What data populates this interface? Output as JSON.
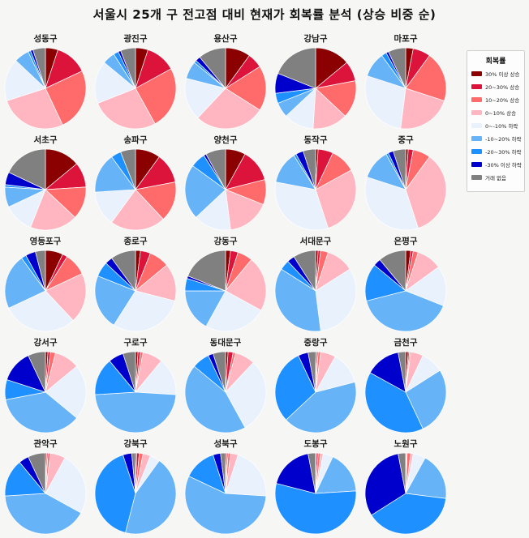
{
  "title": "서울시 25개 구 전고점 대비 현재가 회복률 분석 (상승 비중 순)",
  "legend": {
    "title": "회복률",
    "items": [
      {
        "label": "30% 이상 상승",
        "color": "#8B0000"
      },
      {
        "label": "20~30% 상승",
        "color": "#DC143C"
      },
      {
        "label": "10~20% 상승",
        "color": "#FF6B6B"
      },
      {
        "label": "0~10% 상승",
        "color": "#FFB6C1"
      },
      {
        "label": "0~-10% 하락",
        "color": "#E8F1FC"
      },
      {
        "label": "-10~20% 하락",
        "color": "#66B3F7"
      },
      {
        "label": "-20~30% 하락",
        "color": "#1E90FF"
      },
      {
        "label": "-30% 이상 하락",
        "color": "#0000CD"
      },
      {
        "label": "거래 없음",
        "color": "#808080"
      }
    ]
  },
  "chart_data": {
    "type": "pie",
    "grid": {
      "cols": 5,
      "rows": 5,
      "sorted_by": "상승 비중 순"
    },
    "categories": [
      "30% 이상 상승",
      "20~30% 상승",
      "10~20% 상승",
      "0~10% 상승",
      "0~-10% 하락",
      "-10~20% 하락",
      "-20~30% 하락",
      "-30% 이상 하락",
      "거래 없음"
    ],
    "colors": [
      "#8B0000",
      "#DC143C",
      "#FF6B6B",
      "#FFB6C1",
      "#E8F1FC",
      "#66B3F7",
      "#1E90FF",
      "#0000CD",
      "#808080"
    ],
    "unit": "percent share of transactions",
    "pies": [
      {
        "district": "성동구",
        "values": [
          5,
          13,
          25,
          27,
          17,
          6,
          1,
          1,
          5
        ]
      },
      {
        "district": "광진구",
        "values": [
          5,
          12,
          25,
          27,
          17,
          5,
          2,
          1,
          6
        ]
      },
      {
        "district": "용산구",
        "values": [
          10,
          6,
          18,
          28,
          17,
          7,
          1,
          2,
          11
        ]
      },
      {
        "district": "강남구",
        "values": [
          14,
          8,
          15,
          14,
          12,
          6,
          4,
          8,
          19
        ]
      },
      {
        "district": "마포구",
        "values": [
          3,
          7,
          20,
          22,
          28,
          10,
          2,
          1,
          7
        ]
      },
      {
        "district": "서초구",
        "values": [
          14,
          10,
          13,
          19,
          12,
          8,
          1,
          5,
          18
        ]
      },
      {
        "district": "송파구",
        "values": [
          10,
          12,
          16,
          22,
          14,
          16,
          4,
          0,
          6
        ]
      },
      {
        "district": "양천구",
        "values": [
          8,
          13,
          10,
          17,
          15,
          22,
          6,
          1,
          8
        ]
      },
      {
        "district": "동작구",
        "values": [
          1,
          6,
          10,
          28,
          33,
          13,
          1,
          3,
          5
        ]
      },
      {
        "district": "중구",
        "values": [
          1,
          2,
          7,
          35,
          35,
          12,
          1,
          2,
          5
        ]
      },
      {
        "district": "영등포구",
        "values": [
          7,
          2,
          9,
          20,
          30,
          22,
          2,
          4,
          4
        ]
      },
      {
        "district": "종로구",
        "values": [
          2,
          4,
          8,
          15,
          30,
          22,
          6,
          3,
          10
        ]
      },
      {
        "district": "강동구",
        "values": [
          2,
          3,
          6,
          22,
          25,
          17,
          5,
          1,
          19
        ]
      },
      {
        "district": "서대문구",
        "values": [
          1,
          1,
          3,
          11,
          32,
          36,
          4,
          3,
          9
        ]
      },
      {
        "district": "은평구",
        "values": [
          2,
          1,
          2,
          10,
          16,
          40,
          15,
          3,
          11
        ]
      },
      {
        "district": "강서구",
        "values": [
          1,
          1,
          2,
          10,
          22,
          36,
          8,
          13,
          7
        ]
      },
      {
        "district": "구로구",
        "values": [
          1,
          1,
          1,
          8,
          15,
          48,
          15,
          6,
          5
        ]
      },
      {
        "district": "동대문구",
        "values": [
          1,
          2,
          1,
          8,
          30,
          44,
          7,
          2,
          5
        ]
      },
      {
        "district": "중랑구",
        "values": [
          0.5,
          0.5,
          1,
          6,
          13,
          42,
          30,
          4,
          3
        ]
      },
      {
        "district": "금천구",
        "values": [
          1,
          0.5,
          0.5,
          5,
          9,
          27,
          40,
          14,
          3
        ]
      },
      {
        "district": "관악구",
        "values": [
          0.5,
          0.5,
          1,
          6,
          25,
          41,
          15,
          4,
          7
        ]
      },
      {
        "district": "강북구",
        "values": [
          0.5,
          1,
          1.5,
          3,
          4,
          44,
          41,
          3.5,
          1.5
        ]
      },
      {
        "district": "성북구",
        "values": [
          0.5,
          0.5,
          1,
          3,
          21,
          56,
          13,
          3,
          2
        ]
      },
      {
        "district": "도봉구",
        "values": [
          0.3,
          0.7,
          1,
          1,
          4,
          17,
          55,
          18,
          3
        ]
      },
      {
        "district": "노원구",
        "values": [
          0.3,
          0.3,
          1.4,
          1,
          5,
          19,
          39,
          31,
          3
        ]
      }
    ]
  },
  "layout_hints": {
    "background": "#f6f6f5",
    "legend_position": "upper right",
    "slice_start": "12 o'clock, clockwise"
  }
}
